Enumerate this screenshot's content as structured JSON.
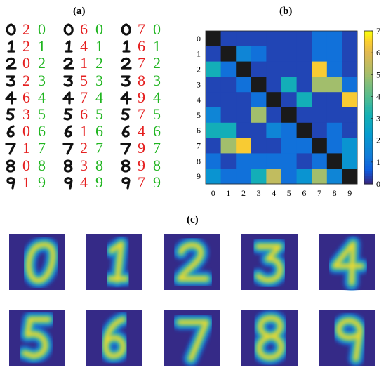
{
  "panel_labels": {
    "a": "(a)",
    "b": "(b)",
    "c": "(c)"
  },
  "colors": {
    "correct": "#1fb51f",
    "wrong": "#e52020",
    "ink": "#111111"
  },
  "panel_a": {
    "rows": [
      [
        {
          "pred": "2",
          "truth": "0",
          "pred_correct": false
        },
        {
          "pred": "6",
          "truth": "0",
          "pred_correct": false
        },
        {
          "pred": "7",
          "truth": "0",
          "pred_correct": false
        }
      ],
      [
        {
          "pred": "2",
          "truth": "1",
          "pred_correct": false
        },
        {
          "pred": "4",
          "truth": "1",
          "pred_correct": false
        },
        {
          "pred": "6",
          "truth": "1",
          "pred_correct": false
        }
      ],
      [
        {
          "pred": "0",
          "truth": "2",
          "pred_correct": false
        },
        {
          "pred": "1",
          "truth": "2",
          "pred_correct": false
        },
        {
          "pred": "7",
          "truth": "2",
          "pred_correct": false
        }
      ],
      [
        {
          "pred": "2",
          "truth": "3",
          "pred_correct": false
        },
        {
          "pred": "5",
          "truth": "3",
          "pred_correct": false
        },
        {
          "pred": "8",
          "truth": "3",
          "pred_correct": false
        }
      ],
      [
        {
          "pred": "6",
          "truth": "4",
          "pred_correct": false
        },
        {
          "pred": "7",
          "truth": "4",
          "pred_correct": false
        },
        {
          "pred": "9",
          "truth": "4",
          "pred_correct": false
        }
      ],
      [
        {
          "pred": "3",
          "truth": "5",
          "pred_correct": false
        },
        {
          "pred": "6",
          "truth": "5",
          "pred_correct": false
        },
        {
          "pred": "7",
          "truth": "5",
          "pred_correct": false
        }
      ],
      [
        {
          "pred": "0",
          "truth": "6",
          "pred_correct": false
        },
        {
          "pred": "1",
          "truth": "6",
          "pred_correct": false
        },
        {
          "pred": "4",
          "truth": "6",
          "pred_correct": false
        }
      ],
      [
        {
          "pred": "1",
          "truth": "7",
          "pred_correct": false
        },
        {
          "pred": "2",
          "truth": "7",
          "pred_correct": false
        },
        {
          "pred": "9",
          "truth": "7",
          "pred_correct": false
        }
      ],
      [
        {
          "pred": "0",
          "truth": "8",
          "pred_correct": false
        },
        {
          "pred": "3",
          "truth": "8",
          "pred_correct": false
        },
        {
          "pred": "9",
          "truth": "8",
          "pred_correct": false
        }
      ],
      [
        {
          "pred": "1",
          "truth": "9",
          "pred_correct": false
        },
        {
          "pred": "4",
          "truth": "9",
          "pred_correct": false
        },
        {
          "pred": "7",
          "truth": "9",
          "pred_correct": false
        }
      ]
    ]
  },
  "chart_data": [
    {
      "type": "heatmap",
      "x_ticks": [
        "0",
        "1",
        "2",
        "3",
        "4",
        "5",
        "6",
        "7",
        "8",
        "9"
      ],
      "y_ticks": [
        "0",
        "1",
        "2",
        "3",
        "4",
        "5",
        "6",
        "7",
        "8",
        "9"
      ],
      "colorbar_ticks": [
        "0",
        "1",
        "2",
        "3",
        "4",
        "5",
        "6",
        "7"
      ],
      "clim": [
        0,
        7
      ],
      "diagonal_color": "#1a1a1a",
      "matrix": [
        [
          0,
          0.3,
          0.3,
          0.3,
          0.3,
          0.3,
          0.3,
          1,
          1,
          0.3
        ],
        [
          0.3,
          0,
          1.5,
          1,
          0.3,
          0.3,
          0.3,
          1,
          1,
          0.3
        ],
        [
          3,
          1,
          0,
          0.3,
          0.3,
          0.3,
          0.3,
          6.5,
          1,
          0.3
        ],
        [
          0.3,
          0.3,
          1,
          0,
          0.3,
          3,
          0.3,
          5,
          5,
          1
        ],
        [
          0.3,
          0.3,
          0.3,
          1,
          0,
          0.3,
          3,
          0.3,
          0.3,
          6.5
        ],
        [
          1.5,
          0.3,
          0.3,
          5,
          0.3,
          0,
          0.3,
          0.3,
          0.3,
          0.3
        ],
        [
          3,
          3,
          0.3,
          0.3,
          1.5,
          1,
          0,
          0.3,
          1,
          0.3
        ],
        [
          0.3,
          5,
          6.5,
          0.3,
          0.3,
          1,
          1,
          0,
          1,
          2
        ],
        [
          1,
          0.3,
          1,
          1,
          1,
          1,
          0.3,
          1,
          0,
          2
        ],
        [
          2,
          1,
          1,
          3,
          5.5,
          1,
          2,
          5,
          1.5,
          0
        ]
      ]
    }
  ],
  "panel_c": {
    "digits": [
      "0",
      "1",
      "2",
      "3",
      "4",
      "5",
      "6",
      "7",
      "8",
      "9"
    ]
  }
}
